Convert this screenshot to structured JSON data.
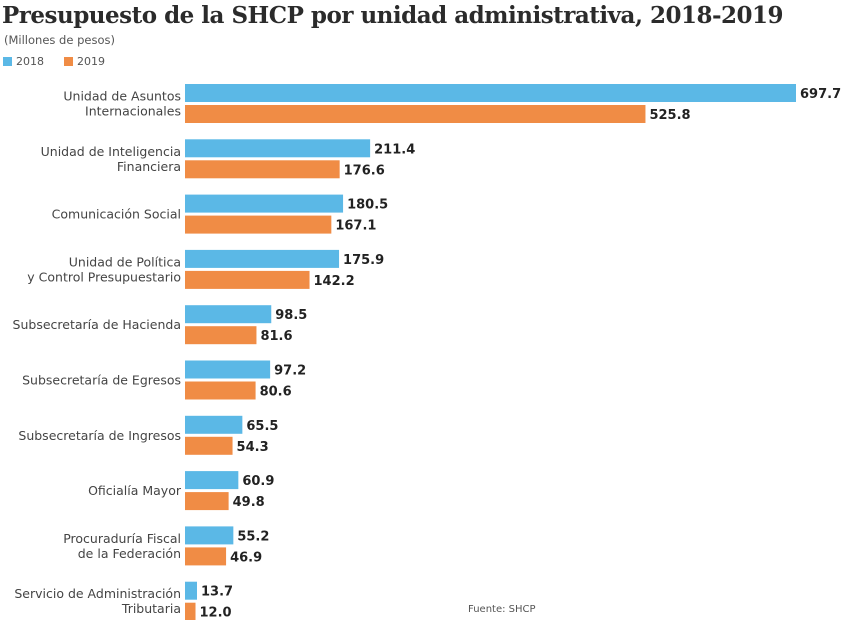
{
  "chart_data": {
    "type": "bar",
    "orientation": "horizontal",
    "title": "Presupuesto de la SHCP por unidad administrativa, 2018-2019",
    "subtitle": "(Millones de pesos)",
    "source": "Fuente: SHCP",
    "xlabel": "",
    "ylabel": "",
    "xlim": [
      0,
      697.7
    ],
    "grid": false,
    "legend_position": "top-left",
    "categories": [
      [
        "Unidad de Asuntos",
        "Internacionales"
      ],
      [
        "Unidad de Inteligencia",
        "Financiera"
      ],
      [
        "Comunicación Social"
      ],
      [
        "Unidad de Política",
        "y Control Presupuestario"
      ],
      [
        "Subsecretaría de Hacienda"
      ],
      [
        "Subsecretaría de Egresos"
      ],
      [
        "Subsecretaría de Ingresos"
      ],
      [
        "Oficialía Mayor"
      ],
      [
        "Procuraduría Fiscal",
        "de la Federación"
      ],
      [
        "Servicio de Administración",
        "Tributaria"
      ]
    ],
    "series": [
      {
        "name": "2018",
        "color": "#5bb8e6",
        "values": [
          697.7,
          211.4,
          180.5,
          175.9,
          98.5,
          97.2,
          65.5,
          60.9,
          55.2,
          13.7
        ],
        "labels": [
          "697.7",
          "211.4",
          "180.5",
          "175.9",
          "98.5",
          "97.2",
          "65.5",
          "60.9",
          "55.2",
          "13.7"
        ]
      },
      {
        "name": "2019",
        "color": "#f08c45",
        "values": [
          525.8,
          176.6,
          167.1,
          142.2,
          81.6,
          80.6,
          54.3,
          49.8,
          46.9,
          12.0
        ],
        "labels": [
          "525.8",
          "176.6",
          "167.1",
          "142.2",
          "81.6",
          "80.6",
          "54.3",
          "49.8",
          "46.9",
          "12.0"
        ]
      }
    ]
  }
}
